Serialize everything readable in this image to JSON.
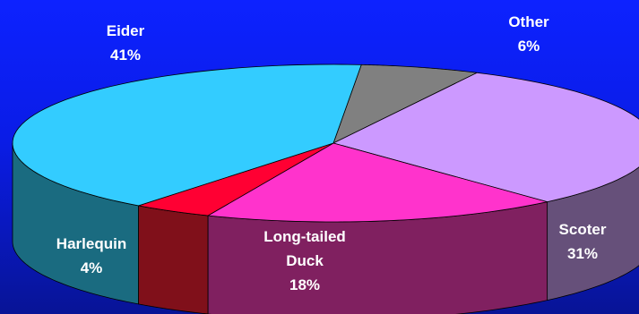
{
  "chart_data": {
    "type": "pie",
    "style": "3d-exploded-perspective",
    "slices": [
      {
        "name": "Eider",
        "value": 41,
        "value_label": "41%",
        "color": "#33ccff",
        "side_color": "#1a6b80"
      },
      {
        "name": "Other",
        "value": 6,
        "value_label": "6%",
        "color": "#808080",
        "side_color": "#404040"
      },
      {
        "name": "Scoter",
        "value": 31,
        "value_label": "31%",
        "color": "#cc99ff",
        "side_color": "#66507a"
      },
      {
        "name": "Long-tailed\nDuck",
        "value": 18,
        "value_label": "18%",
        "color": "#ff33cc",
        "side_color": "#802060"
      },
      {
        "name": "Harlequin",
        "value": 4,
        "value_label": "4%",
        "color": "#ff0033",
        "side_color": "#80101a"
      }
    ],
    "legend": "none",
    "title": ""
  }
}
